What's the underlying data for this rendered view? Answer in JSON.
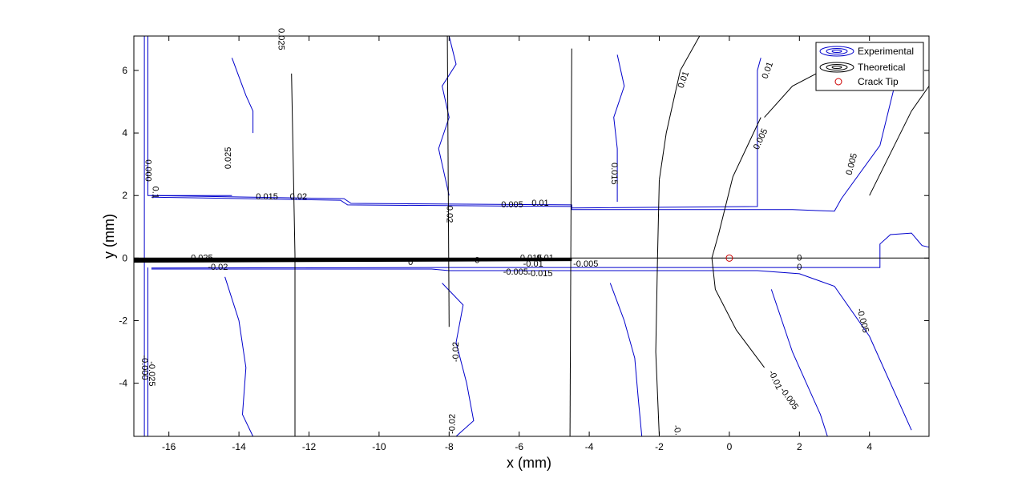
{
  "chart_data": {
    "type": "contour",
    "xlabel": "x (mm)",
    "ylabel": "y (mm)",
    "xlim": [
      -17,
      5.7
    ],
    "ylim": [
      -5.7,
      7.1
    ],
    "x_ticks": [
      -16,
      -14,
      -12,
      -10,
      -8,
      -6,
      -4,
      -2,
      0,
      2,
      4
    ],
    "y_ticks": [
      -4,
      -2,
      0,
      2,
      4,
      6
    ],
    "grid": false,
    "legend_position": "top-right",
    "legend": [
      {
        "label": "Experimental",
        "color": "#0000cc",
        "marker": "contour-icon"
      },
      {
        "label": "Theoretical",
        "color": "#000000",
        "marker": "contour-icon"
      },
      {
        "label": "Crack Tip",
        "color": "#cc0000",
        "marker": "circle"
      }
    ],
    "crack_tip": {
      "x": 0,
      "y": 0
    },
    "experimental_contours": [
      {
        "points": [
          [
            -16.7,
            7.1
          ],
          [
            -16.7,
            -5.7
          ]
        ]
      },
      {
        "points": [
          [
            -16.6,
            7.1
          ],
          [
            -16.6,
            2.0
          ],
          [
            -14.2,
            2.0
          ]
        ]
      },
      {
        "points": [
          [
            -16.5,
            2.0
          ],
          [
            -11.0,
            1.9
          ],
          [
            -10.8,
            1.75
          ],
          [
            -4.5,
            1.7
          ],
          [
            -4.5,
            1.6
          ],
          [
            0.8,
            1.65
          ],
          [
            0.8,
            6.0
          ],
          [
            0.9,
            6.4
          ]
        ]
      },
      {
        "points": [
          [
            -16.5,
            1.95
          ],
          [
            -11.1,
            1.85
          ],
          [
            -10.9,
            1.7
          ],
          [
            -4.5,
            1.65
          ],
          [
            -4.5,
            1.55
          ],
          [
            1.8,
            1.55
          ],
          [
            3.0,
            1.5
          ],
          [
            3.2,
            1.9
          ],
          [
            4.3,
            3.6
          ],
          [
            5.0,
            6.8
          ]
        ]
      },
      {
        "points": [
          [
            -16.6,
            -0.3
          ],
          [
            -16.6,
            -5.7
          ]
        ]
      },
      {
        "points": [
          [
            -16.5,
            -0.35
          ],
          [
            -8.5,
            -0.35
          ],
          [
            -8.0,
            -0.4
          ],
          [
            -5.0,
            -0.4
          ],
          [
            0.8,
            -0.4
          ],
          [
            2.0,
            -0.5
          ],
          [
            3.0,
            -0.9
          ],
          [
            4.0,
            -2.5
          ],
          [
            5.2,
            -5.5
          ]
        ]
      },
      {
        "points": [
          [
            -16.5,
            -0.32
          ],
          [
            -8.0,
            -0.3
          ],
          [
            1.0,
            -0.3
          ],
          [
            4.3,
            -0.3
          ],
          [
            4.3,
            0.45
          ],
          [
            4.6,
            0.75
          ],
          [
            5.2,
            0.8
          ],
          [
            5.5,
            0.4
          ],
          [
            5.7,
            0.35
          ]
        ]
      },
      {
        "points": [
          [
            -14.2,
            6.4
          ],
          [
            -14.0,
            5.8
          ],
          [
            -13.8,
            5.2
          ],
          [
            -13.6,
            4.7
          ],
          [
            -13.6,
            4.0
          ]
        ]
      },
      {
        "points": [
          [
            -14.4,
            -0.6
          ],
          [
            -14.0,
            -2.0
          ],
          [
            -13.8,
            -3.5
          ],
          [
            -13.9,
            -5.0
          ],
          [
            -13.6,
            -5.7
          ]
        ]
      },
      {
        "points": [
          [
            -8.0,
            7.1
          ],
          [
            -7.8,
            6.2
          ],
          [
            -8.2,
            5.5
          ],
          [
            -8.0,
            4.5
          ],
          [
            -8.3,
            3.5
          ],
          [
            -8.0,
            2.0
          ]
        ]
      },
      {
        "points": [
          [
            -8.2,
            -0.8
          ],
          [
            -7.6,
            -1.5
          ],
          [
            -7.8,
            -2.7
          ],
          [
            -7.5,
            -4.0
          ],
          [
            -7.3,
            -5.2
          ],
          [
            -7.8,
            -5.7
          ]
        ]
      },
      {
        "points": [
          [
            -3.2,
            6.5
          ],
          [
            -3.0,
            5.5
          ],
          [
            -3.3,
            4.5
          ],
          [
            -3.2,
            3.5
          ],
          [
            -3.2,
            1.8
          ]
        ]
      },
      {
        "points": [
          [
            -3.4,
            -0.8
          ],
          [
            -3.0,
            -2.0
          ],
          [
            -2.7,
            -3.2
          ],
          [
            -2.6,
            -4.5
          ],
          [
            -2.5,
            -5.7
          ]
        ]
      },
      {
        "points": [
          [
            1.2,
            -1.0
          ],
          [
            1.5,
            -2.0
          ],
          [
            1.8,
            -3.0
          ],
          [
            2.2,
            -4.0
          ],
          [
            2.6,
            -5.0
          ],
          [
            2.8,
            -5.7
          ]
        ]
      }
    ],
    "theoretical_contours": [
      {
        "points": [
          [
            -17.0,
            0.0
          ],
          [
            5.7,
            0.0
          ]
        ]
      },
      {
        "points": [
          [
            -12.5,
            5.9
          ],
          [
            -12.4,
            0.1
          ],
          [
            -12.4,
            -5.7
          ]
        ]
      },
      {
        "points": [
          [
            -8.05,
            7.1
          ],
          [
            -8.0,
            -2.2
          ]
        ]
      },
      {
        "points": [
          [
            -4.5,
            6.7
          ],
          [
            -4.55,
            -5.7
          ]
        ]
      },
      {
        "points": [
          [
            -2.0,
            2.5
          ],
          [
            -2.05,
            0.0
          ],
          [
            -2.1,
            -3.0
          ],
          [
            -2.0,
            -5.7
          ]
        ]
      },
      {
        "points": [
          [
            -0.85,
            7.1
          ],
          [
            -1.4,
            6.0
          ],
          [
            -1.8,
            4.0
          ],
          [
            -2.0,
            2.5
          ]
        ]
      },
      {
        "points": [
          [
            0.9,
            4.5
          ],
          [
            0.1,
            2.6
          ],
          [
            -0.3,
            0.8
          ],
          [
            -0.5,
            0.0
          ],
          [
            -0.4,
            -1.0
          ],
          [
            0.2,
            -2.3
          ],
          [
            1.0,
            -3.5
          ]
        ]
      },
      {
        "points": [
          [
            1.0,
            4.5
          ],
          [
            1.8,
            5.5
          ],
          [
            3.0,
            6.2
          ]
        ]
      },
      {
        "points": [
          [
            4.0,
            2.0
          ],
          [
            5.2,
            4.7
          ],
          [
            5.7,
            5.5
          ]
        ]
      }
    ],
    "contour_labels": [
      {
        "text": "0.025",
        "x": -12.8,
        "y": 7.0,
        "angle": 90
      },
      {
        "text": "0.025",
        "x": -14.3,
        "y": 3.2,
        "angle": -90
      },
      {
        "text": "0.015",
        "x": -13.2,
        "y": 1.95,
        "angle": 0
      },
      {
        "text": "0.02",
        "x": -12.3,
        "y": 1.95,
        "angle": 0
      },
      {
        "text": "0.02",
        "x": -8.0,
        "y": 1.4,
        "angle": 90
      },
      {
        "text": "0.005",
        "x": -6.2,
        "y": 1.7,
        "angle": 0
      },
      {
        "text": "0.01",
        "x": -5.4,
        "y": 1.75,
        "angle": 0
      },
      {
        "text": "0.015",
        "x": -3.3,
        "y": 2.7,
        "angle": 90
      },
      {
        "text": "0.01",
        "x": -1.3,
        "y": 5.7,
        "angle": -70
      },
      {
        "text": "0.01",
        "x": 1.1,
        "y": 6.0,
        "angle": -70
      },
      {
        "text": "0.005",
        "x": 0.9,
        "y": 3.8,
        "angle": -65
      },
      {
        "text": "0.005",
        "x": 3.5,
        "y": 3.0,
        "angle": -75
      },
      {
        "text": "0",
        "x": 2.0,
        "y": 0.0,
        "angle": 0
      },
      {
        "text": "0",
        "x": 2.0,
        "y": -0.3,
        "angle": 0
      },
      {
        "text": "0",
        "x": -9.1,
        "y": -0.15,
        "angle": 0
      },
      {
        "text": "0",
        "x": -7.2,
        "y": -0.08,
        "angle": 0
      },
      {
        "text": "-0.005",
        "x": 3.8,
        "y": -2.0,
        "angle": 75
      },
      {
        "text": "-0.01",
        "x": 1.3,
        "y": -3.9,
        "angle": 65
      },
      {
        "text": "-0.005",
        "x": 1.7,
        "y": -4.5,
        "angle": 55
      },
      {
        "text": "-0.",
        "x": -1.5,
        "y": -5.5,
        "angle": 75
      },
      {
        "text": "-0.02",
        "x": -7.8,
        "y": -3.0,
        "angle": -90
      },
      {
        "text": "-0.02",
        "x": -14.6,
        "y": -0.3,
        "angle": 0
      },
      {
        "text": "-0.02",
        "x": -7.9,
        "y": -5.3,
        "angle": -90
      },
      {
        "text": "-0.005",
        "x": -4.1,
        "y": -0.2,
        "angle": 0
      },
      {
        "text": "-0.005",
        "x": -6.1,
        "y": -0.45,
        "angle": 0
      },
      {
        "text": "-0.015",
        "x": -5.4,
        "y": -0.5,
        "angle": 0
      },
      {
        "text": "-0.01",
        "x": -5.6,
        "y": -0.2,
        "angle": 0
      },
      {
        "text": "-0.015",
        "x": -5.7,
        "y": 0.0,
        "angle": 0
      },
      {
        "text": "-0.01",
        "x": -5.3,
        "y": 0.0,
        "angle": 0
      },
      {
        "text": "-0.025",
        "x": -15.1,
        "y": 0.0,
        "angle": 0
      },
      {
        "text": "0.000",
        "x": -16.6,
        "y": 2.8,
        "angle": 90
      },
      {
        "text": "0.1",
        "x": -16.4,
        "y": 2.1,
        "angle": 90
      },
      {
        "text": "-0.000",
        "x": -16.7,
        "y": -3.5,
        "angle": 90
      },
      {
        "text": "-0.025",
        "x": -16.5,
        "y": -3.7,
        "angle": 90
      }
    ]
  }
}
